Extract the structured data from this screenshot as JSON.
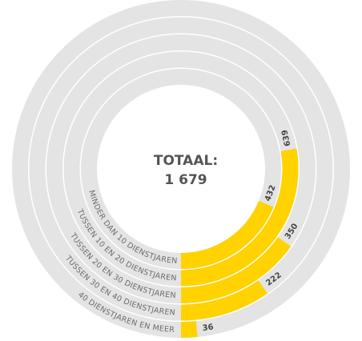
{
  "chart_data": {
    "type": "radial_bar",
    "title": "TOTAAL:",
    "total": {
      "value": 1679,
      "label": "1 679"
    },
    "categories": [
      "MINDER DAN 10 DIENSTJAREN",
      "TUSSEN 10 EN 20 DIENSTJAREN",
      "TUSSEN 20 EN 30 DIENSTJAREN",
      "TUSSEN 30 EN 40 DIENSTJAREN",
      "40 DIENSTJAREN EN MEER"
    ],
    "values": [
      432,
      639,
      350,
      222,
      36
    ],
    "color": "#ffd200",
    "track_color": "#e4e4e4"
  }
}
